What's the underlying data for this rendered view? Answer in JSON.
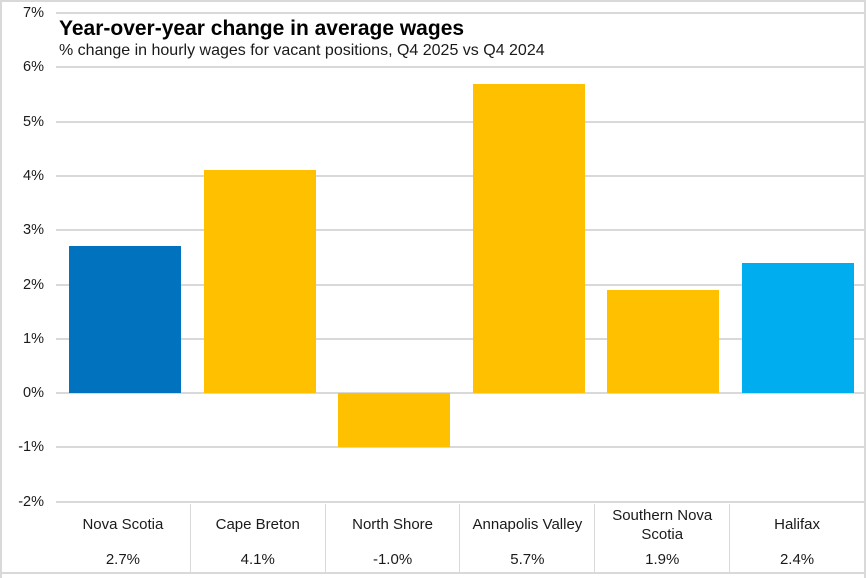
{
  "chart_data": {
    "type": "bar",
    "title": "Year-over-year change in average wages",
    "subtitle": "% change in hourly wages for vacant positions, Q4 2025 vs Q4 2024",
    "categories": [
      "Nova Scotia",
      "Cape Breton",
      "North Shore",
      "Annapolis Valley",
      "Southern Nova Scotia",
      "Halifax"
    ],
    "values": [
      2.7,
      4.1,
      -1.0,
      5.7,
      1.9,
      2.4
    ],
    "value_labels": [
      "2.7%",
      "4.1%",
      "-1.0%",
      "5.7%",
      "1.9%",
      "2.4%"
    ],
    "bar_colors": [
      "#0072BE",
      "#FFC000",
      "#FFC000",
      "#FFC000",
      "#FFC000",
      "#00AEEF"
    ],
    "ylim": [
      -2,
      7
    ],
    "ytick_step": 1,
    "ytick_labels": [
      "7%",
      "6%",
      "5%",
      "4%",
      "3%",
      "2%",
      "1%",
      "0%",
      "-1%",
      "-2%"
    ],
    "xlabel": "",
    "ylabel": "",
    "grid": true,
    "gridline_color": "#d9d9d9",
    "legend": "none"
  }
}
